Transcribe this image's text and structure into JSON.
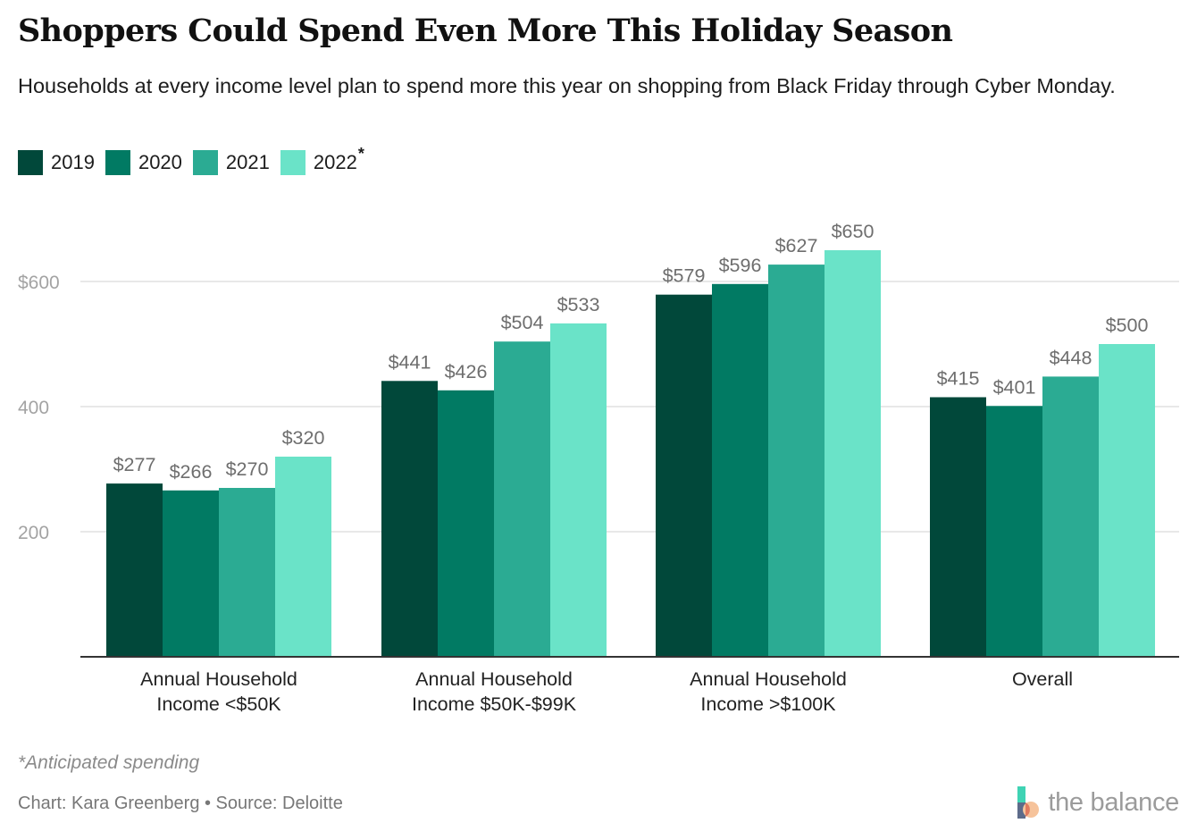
{
  "title": "Shoppers Could Spend Even More This Holiday Season",
  "subtitle": "Households at every income level plan to spend more this year on shopping from Black Friday through Cyber Monday.",
  "legend": [
    {
      "label": "2019",
      "color": "#01483a",
      "note": ""
    },
    {
      "label": "2020",
      "color": "#017a63",
      "note": ""
    },
    {
      "label": "2021",
      "color": "#2bab93",
      "note": ""
    },
    {
      "label": "2022",
      "color": "#6ae3c8",
      "note": "*"
    }
  ],
  "footnote": "*Anticipated spending",
  "credit": "Chart: Kara Greenberg • Source: Deloitte",
  "brand": {
    "name": "the balance",
    "icon": "the-balance-logo-icon"
  },
  "chart_data": {
    "type": "bar",
    "title": "Shoppers Could Spend Even More This Holiday Season",
    "xlabel": "",
    "ylabel": "",
    "ylim": [
      0,
      700
    ],
    "yticks": [
      200,
      400,
      600
    ],
    "ytick_labels": [
      "200",
      "400",
      "$600"
    ],
    "grid": true,
    "legend_position": "top-left",
    "categories": [
      [
        "Annual Household",
        "Income <$50K"
      ],
      [
        "Annual Household",
        "Income $50K-$99K"
      ],
      [
        "Annual Household",
        "Income >$100K"
      ],
      [
        "Overall"
      ]
    ],
    "series": [
      {
        "name": "2019",
        "color": "#01483a",
        "values": [
          277,
          441,
          579,
          415
        ],
        "labels": [
          "$277",
          "$441",
          "$579",
          "$415"
        ]
      },
      {
        "name": "2020",
        "color": "#017a63",
        "values": [
          266,
          426,
          596,
          401
        ],
        "labels": [
          "$266",
          "$426",
          "$596",
          "$401"
        ]
      },
      {
        "name": "2021",
        "color": "#2bab93",
        "values": [
          270,
          504,
          627,
          448
        ],
        "labels": [
          "$270",
          "$504",
          "$627",
          "$448"
        ]
      },
      {
        "name": "2022",
        "color": "#6ae3c8",
        "values": [
          320,
          533,
          650,
          500
        ],
        "labels": [
          "$320",
          "$533",
          "$650",
          "$500"
        ]
      }
    ]
  }
}
